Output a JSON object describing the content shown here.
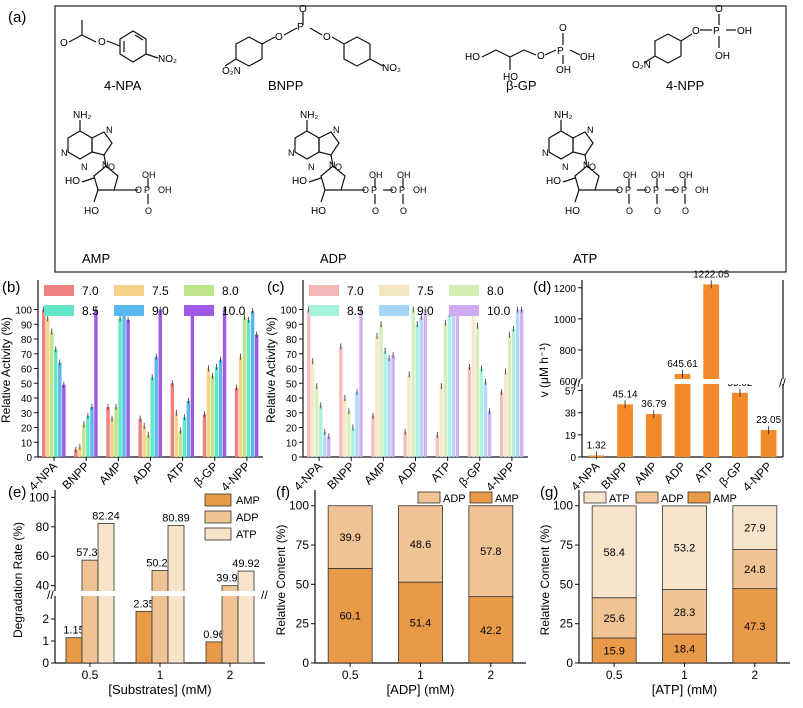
{
  "panel_a": {
    "letter": "(a)",
    "molecules": [
      "4-NPA",
      "BNPP",
      "β-GP",
      "4-NPP",
      "AMP",
      "ADP",
      "ATP"
    ],
    "atom_labels": {
      "nitro": "NO₂",
      "nitro_left": "O₂N",
      "amine": "NH₂",
      "oh": "OH",
      "ho": "HO",
      "o": "O",
      "p": "P",
      "n": "N"
    }
  },
  "chart_data": [
    {
      "panel": "(b)",
      "type": "bar",
      "ylabel": "Relative Activity (%)",
      "ylim": [
        0,
        120
      ],
      "yticks": [
        0,
        10,
        20,
        30,
        40,
        50,
        60,
        70,
        80,
        90,
        100
      ],
      "categories": [
        "4-NPA",
        "BNPP",
        "AMP",
        "ADP",
        "ATP",
        "β-GP",
        "4-NPP"
      ],
      "legend_position": "top",
      "series": [
        {
          "name": "7.0",
          "color": "#f08080",
          "values": [
            100,
            5,
            34,
            26,
            50,
            29,
            47
          ]
        },
        {
          "name": "7.5",
          "color": "#f5d38a",
          "values": [
            94,
            7,
            26,
            21,
            30,
            60,
            68
          ]
        },
        {
          "name": "8.0",
          "color": "#bfe58a",
          "values": [
            85,
            22,
            34,
            15,
            18,
            55,
            95
          ]
        },
        {
          "name": "8.5",
          "color": "#66e6c8",
          "values": [
            73,
            28,
            94,
            54,
            27,
            61,
            93
          ]
        },
        {
          "name": "9.0",
          "color": "#59b8f0",
          "values": [
            64,
            34,
            98,
            68,
            38,
            66,
            99
          ]
        },
        {
          "name": "10.0",
          "color": "#9f59e5",
          "values": [
            49,
            100,
            93,
            100,
            100,
            100,
            83
          ]
        }
      ]
    },
    {
      "panel": "(c)",
      "type": "bar",
      "ylabel": "Relative Activity (%)",
      "ylim": [
        0,
        120
      ],
      "yticks": [
        0,
        10,
        20,
        30,
        40,
        50,
        60,
        70,
        80,
        90,
        100
      ],
      "categories": [
        "4-NPA",
        "BNPP",
        "AMP",
        "ADP",
        "ATP",
        "β-GP",
        "4-NPP"
      ],
      "legend_position": "top",
      "series": [
        {
          "name": "7.0",
          "color": "#f5b8b8",
          "values": [
            100,
            75,
            28,
            17,
            15,
            61,
            44
          ]
        },
        {
          "name": "7.5",
          "color": "#f5e6c2",
          "values": [
            65,
            40,
            82,
            56,
            48,
            100,
            58
          ]
        },
        {
          "name": "8.0",
          "color": "#d6ecb5",
          "values": [
            48,
            31,
            90,
            100,
            91,
            89,
            83
          ]
        },
        {
          "name": "8.5",
          "color": "#a6f0dc",
          "values": [
            35,
            20,
            72,
            90,
            97,
            60,
            87
          ]
        },
        {
          "name": "9.0",
          "color": "#a6d6f5",
          "values": [
            17,
            44,
            67,
            95,
            100,
            51,
            100
          ]
        },
        {
          "name": "10.0",
          "color": "#cfaaf0",
          "values": [
            14,
            100,
            69,
            100,
            100,
            31,
            100
          ]
        }
      ]
    },
    {
      "panel": "(d)",
      "type": "bar",
      "ylabel": "v (μM h⁻¹)",
      "axis_break": true,
      "yticks_lower": [
        0,
        19,
        38,
        57
      ],
      "yticks_upper": [
        600,
        800,
        1000,
        1200
      ],
      "categories": [
        "4-NPA",
        "BNPP",
        "AMP",
        "ADP",
        "ATP",
        "β-GP",
        "4-NPP"
      ],
      "values": [
        1.32,
        45.14,
        36.79,
        645.61,
        1222.05,
        55.02,
        23.05
      ],
      "labels": [
        "1.32",
        "45.14",
        "36.79",
        "645.61",
        "1222.05",
        "55.02",
        "23.05"
      ],
      "color": "#f28a2a"
    },
    {
      "panel": "(e)",
      "type": "bar",
      "ylabel": "Degradation Rate (%)",
      "xlabel": "[Substrates] (mM)",
      "axis_break": true,
      "yticks_lower": [
        0,
        1,
        2
      ],
      "yticks_upper": [
        40,
        60,
        80,
        100
      ],
      "categories": [
        "0.5",
        "1",
        "2"
      ],
      "legend_position": "top-right",
      "series": [
        {
          "name": "AMP",
          "color": "#e99a48",
          "values": [
            1.15,
            2.35,
            0.96
          ],
          "labels": [
            "1.15",
            "2.35",
            "0.96"
          ]
        },
        {
          "name": "ADP",
          "color": "#f0c394",
          "values": [
            57.33,
            50.29,
            39.99
          ],
          "labels": [
            "57.33",
            "50.29",
            "39.99"
          ]
        },
        {
          "name": "ATP",
          "color": "#f8e3cb",
          "values": [
            82.24,
            80.89,
            49.92
          ],
          "labels": [
            "82.24",
            "80.89",
            "49.92"
          ]
        }
      ]
    },
    {
      "panel": "(f)",
      "type": "bar",
      "ylabel": "Relative Content (%)",
      "xlabel": "[ADP] (mM)",
      "stacked": true,
      "ylim": [
        0,
        100
      ],
      "yticks": [
        0,
        25,
        50,
        75,
        100
      ],
      "categories": [
        "0.5",
        "1",
        "2"
      ],
      "legend_position": "top",
      "series": [
        {
          "name": "AMP",
          "color": "#e99a48",
          "values": [
            60.1,
            51.4,
            42.2
          ],
          "labels": [
            "60.1",
            "51.4",
            "42.2"
          ]
        },
        {
          "name": "ADP",
          "color": "#f0c394",
          "values": [
            39.9,
            48.6,
            57.8
          ],
          "labels": [
            "39.9",
            "48.6",
            "57.8"
          ]
        }
      ]
    },
    {
      "panel": "(g)",
      "type": "bar",
      "ylabel": "Relative Content (%)",
      "xlabel": "[ATP] (mM)",
      "stacked": true,
      "ylim": [
        0,
        100
      ],
      "yticks": [
        0,
        25,
        50,
        75,
        100
      ],
      "categories": [
        "0.5",
        "1",
        "2"
      ],
      "legend_position": "top",
      "series": [
        {
          "name": "AMP",
          "color": "#e99a48",
          "values": [
            15.9,
            18.4,
            47.3
          ],
          "labels": [
            "15.9",
            "18.4",
            "47.3"
          ]
        },
        {
          "name": "ADP",
          "color": "#f0c394",
          "values": [
            25.6,
            28.3,
            24.8
          ],
          "labels": [
            "25.6",
            "28.3",
            "24.8"
          ]
        },
        {
          "name": "ATP",
          "color": "#f8e3cb",
          "values": [
            58.4,
            53.2,
            27.9
          ],
          "labels": [
            "58.4",
            "53.2",
            "27.9"
          ]
        }
      ]
    }
  ]
}
